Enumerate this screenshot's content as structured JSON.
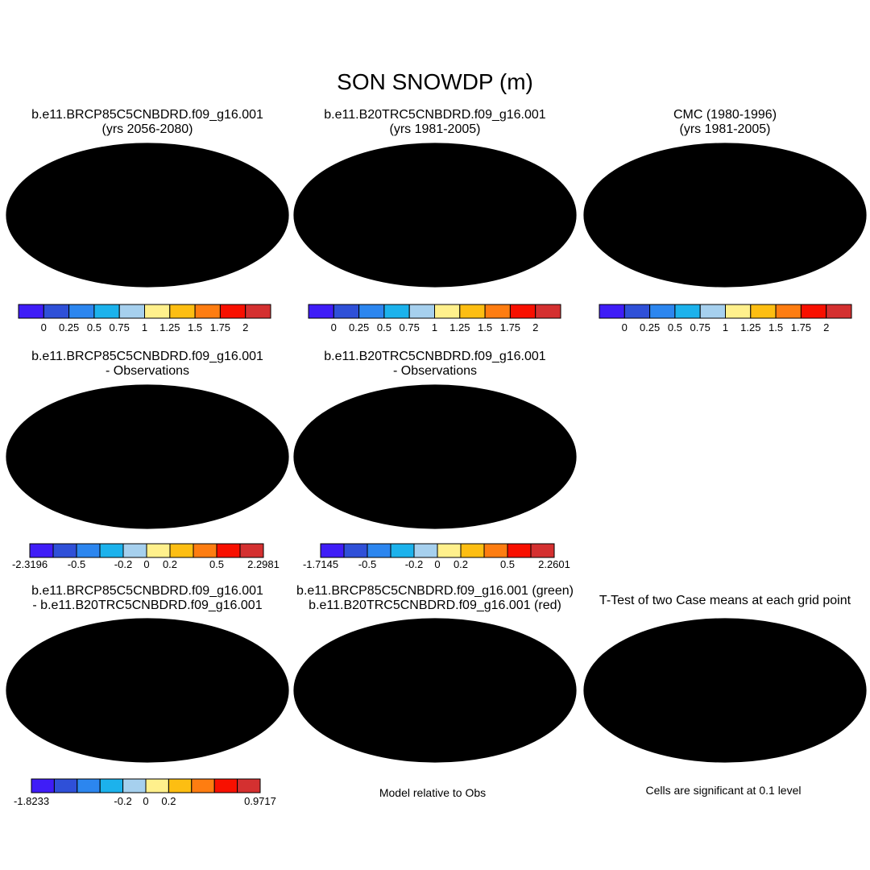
{
  "title": "SON SNOWDP (m)",
  "colors": {
    "palette": [
      "#3f1df7",
      "#2f50d8",
      "#2c86ef",
      "#1cb2ec",
      "#a6d0ee",
      "#fff08c",
      "#fdbe12",
      "#fe7d11",
      "#f81000",
      "#d43030"
    ],
    "ocean": "#ffffff",
    "coast": "#000000",
    "blue_fill": "#3553dd",
    "light_blue": "#a9d2ef",
    "yellow": "#fff08c",
    "red": "#f81000",
    "green": "#22dd11",
    "warm": "#f6a323"
  },
  "panels": [
    {
      "id": "p1",
      "title_line1": "b.e11.BRCP85C5CNBDRD.f09_g16.001",
      "title_line2": "(yrs 2056-2080)",
      "fill": "model_future"
    },
    {
      "id": "p2",
      "title_line1": "b.e11.B20TRC5CNBDRD.f09_g16.001",
      "title_line2": "(yrs 1981-2005)",
      "fill": "model_hist"
    },
    {
      "id": "p3",
      "title_line1": "CMC (1980-1996)",
      "title_line2": "(yrs 1981-2005)",
      "fill": "obs"
    },
    {
      "id": "p4",
      "title_line1": "b.e11.BRCP85C5CNBDRD.f09_g16.001",
      "title_line2": "- Observations",
      "fill": "diff_obs_future"
    },
    {
      "id": "p5",
      "title_line1": "b.e11.B20TRC5CNBDRD.f09_g16.001",
      "title_line2": "- Observations",
      "fill": "diff_obs_hist"
    },
    {
      "id": "p7",
      "title_line1": "b.e11.BRCP85C5CNBDRD.f09_g16.001",
      "title_line2": "- b.e11.B20TRC5CNBDRD.f09_g16.001",
      "fill": "diff_cases"
    },
    {
      "id": "p8",
      "title_line1": "b.e11.BRCP85C5CNBDRD.f09_g16.001 (green)",
      "title_line2": "b.e11.B20TRC5CNBDRD.f09_g16.001 (red)",
      "fill": "overlay"
    },
    {
      "id": "p9",
      "title_line1": "T-Test of two Case means at each grid point",
      "title_line2": "",
      "fill": "ttest"
    }
  ],
  "colorbars": [
    {
      "id": "cb1",
      "labels": [
        "0",
        "0.25",
        "0.5",
        "0.75",
        "1",
        "1.25",
        "1.5",
        "1.75",
        "2"
      ]
    },
    {
      "id": "cb2",
      "labels": [
        "0",
        "0.25",
        "0.5",
        "0.75",
        "1",
        "1.25",
        "1.5",
        "1.75",
        "2"
      ]
    },
    {
      "id": "cb3",
      "labels": [
        "0",
        "0.25",
        "0.5",
        "0.75",
        "1",
        "1.25",
        "1.5",
        "1.75",
        "2"
      ]
    },
    {
      "id": "cb4",
      "labels": [
        "-2.3196",
        "-0.5",
        "-0.2",
        "0",
        "0.2",
        "0.5",
        "2.2981"
      ]
    },
    {
      "id": "cb5",
      "labels": [
        "-1.7145",
        "-0.5",
        "-0.2",
        "0",
        "0.2",
        "0.5",
        "2.2601"
      ]
    },
    {
      "id": "cb7",
      "labels": [
        "-1.8233",
        "-0.2",
        "0",
        "0.2",
        "0.9717"
      ]
    }
  ],
  "footnotes": {
    "model_relative": "Model relative to Obs",
    "significance": "Cells are significant at 0.1 level"
  },
  "chart_data": [
    {
      "type": "heatmap",
      "title": "b.e11.BRCP85C5CNBDRD.f09_g16.001 (yrs 2056-2080)",
      "variable": "SON SNOWDP",
      "units": "m",
      "levels": [
        0,
        0.25,
        0.5,
        0.75,
        1,
        1.25,
        1.5,
        1.75,
        2
      ]
    },
    {
      "type": "heatmap",
      "title": "b.e11.B20TRC5CNBDRD.f09_g16.001 (yrs 1981-2005)",
      "variable": "SON SNOWDP",
      "units": "m",
      "levels": [
        0,
        0.25,
        0.5,
        0.75,
        1,
        1.25,
        1.5,
        1.75,
        2
      ]
    },
    {
      "type": "heatmap",
      "title": "CMC (1980-1996) (yrs 1981-2005)",
      "variable": "SON SNOWDP",
      "units": "m",
      "levels": [
        0,
        0.25,
        0.5,
        0.75,
        1,
        1.25,
        1.5,
        1.75,
        2
      ]
    },
    {
      "type": "heatmap",
      "title": "b.e11.BRCP85C5CNBDRD.f09_g16.001 - Observations",
      "levels": [
        -0.5,
        -0.2,
        0,
        0.2,
        0.5
      ],
      "min": -2.3196,
      "max": 2.2981
    },
    {
      "type": "heatmap",
      "title": "b.e11.B20TRC5CNBDRD.f09_g16.001 - Observations",
      "levels": [
        -0.5,
        -0.2,
        0,
        0.2,
        0.5
      ],
      "min": -1.7145,
      "max": 2.2601
    },
    {
      "type": "heatmap",
      "title": "b.e11.BRCP85C5CNBDRD.f09_g16.001 - b.e11.B20TRC5CNBDRD.f09_g16.001",
      "levels": [
        -0.2,
        0,
        0.2
      ],
      "min": -1.8233,
      "max": 0.9717
    },
    {
      "type": "heatmap",
      "title": "Model relative to Obs overlay",
      "series": [
        {
          "name": "b.e11.BRCP85C5CNBDRD.f09_g16.001",
          "color": "green"
        },
        {
          "name": "b.e11.B20TRC5CNBDRD.f09_g16.001",
          "color": "red"
        }
      ]
    },
    {
      "type": "heatmap",
      "title": "T-Test of two Case means at each grid point",
      "note": "Cells are significant at 0.1 level"
    }
  ]
}
